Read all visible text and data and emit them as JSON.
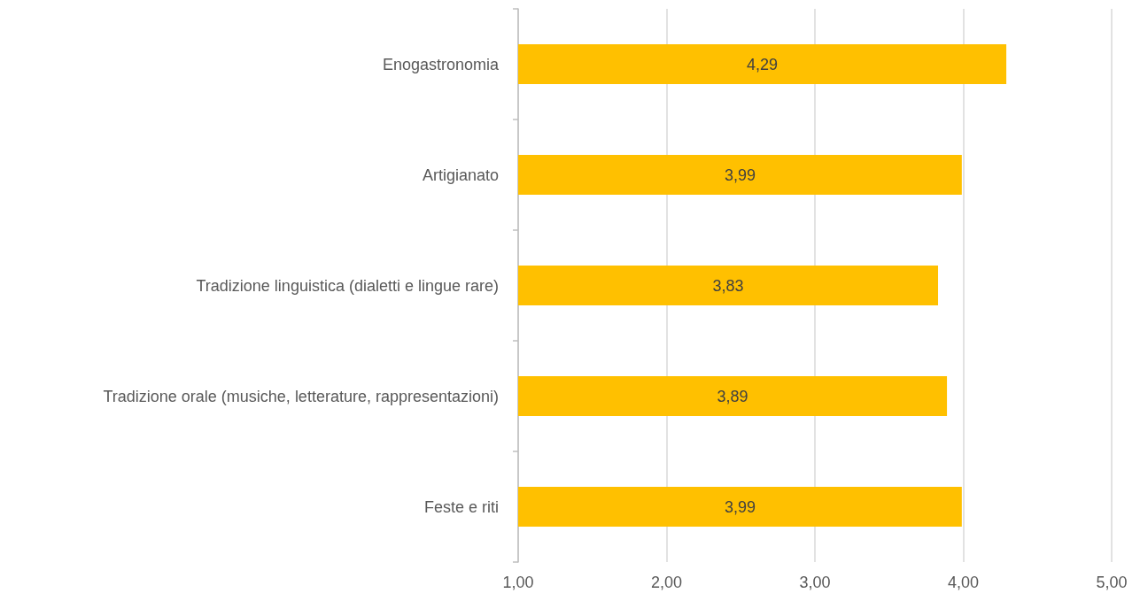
{
  "chart_data": {
    "type": "bar",
    "orientation": "horizontal",
    "categories": [
      "Enogastronomia",
      "Artigianato",
      "Tradizione linguistica (dialetti e lingue rare)",
      "Tradizione orale (musiche, letterature, rappresentazioni)",
      "Feste e riti"
    ],
    "values": [
      4.29,
      3.99,
      3.83,
      3.89,
      3.99
    ],
    "color": "#ffc000",
    "value_labels": [
      "4,29",
      "3,99",
      "3,83",
      "3,89",
      "3,99"
    ],
    "xlim": [
      1,
      5
    ],
    "xticks": [
      {
        "value": 1,
        "label": "1,00"
      },
      {
        "value": 2,
        "label": "2,00"
      },
      {
        "value": 3,
        "label": "3,00"
      },
      {
        "value": 4,
        "label": "4,00"
      },
      {
        "value": 5,
        "label": "5,00"
      }
    ],
    "grid": "x"
  }
}
